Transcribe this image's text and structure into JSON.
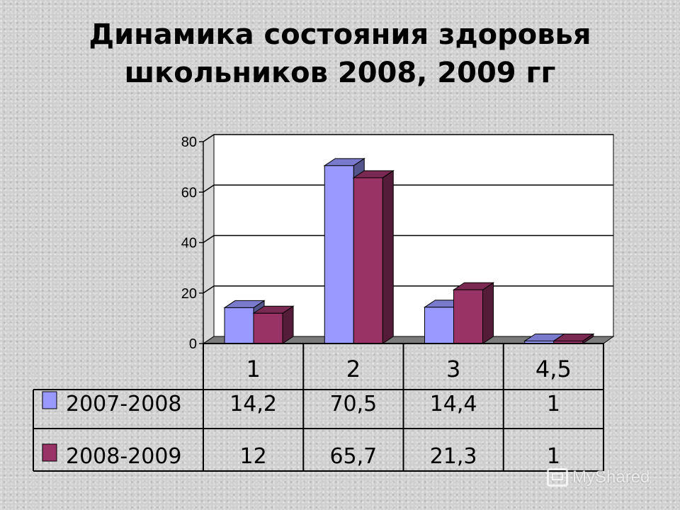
{
  "slide": {
    "title_line1": "Динамика состояния здоровья",
    "title_line2": "школьников 2008, 2009 гг"
  },
  "chart_data": {
    "type": "bar",
    "title": "Динамика состояния здоровья школьников 2008, 2009 гг",
    "categories": [
      "1",
      "2",
      "3",
      "4,5"
    ],
    "series": [
      {
        "name": "2007-2008",
        "values": [
          14.2,
          70.5,
          14.4,
          1
        ],
        "labels": [
          "14,2",
          "70,5",
          "14,4",
          "1"
        ],
        "color": "#9999ff"
      },
      {
        "name": "2008-2009",
        "values": [
          12,
          65.7,
          21.3,
          1
        ],
        "labels": [
          "12",
          "65,7",
          "21,3",
          "1"
        ],
        "color": "#993366"
      }
    ],
    "ylim": [
      0,
      80
    ],
    "yticks": [
      0,
      20,
      40,
      60,
      80
    ],
    "grid": true,
    "legend": "data-table"
  },
  "watermark": {
    "text": "MyShared"
  }
}
